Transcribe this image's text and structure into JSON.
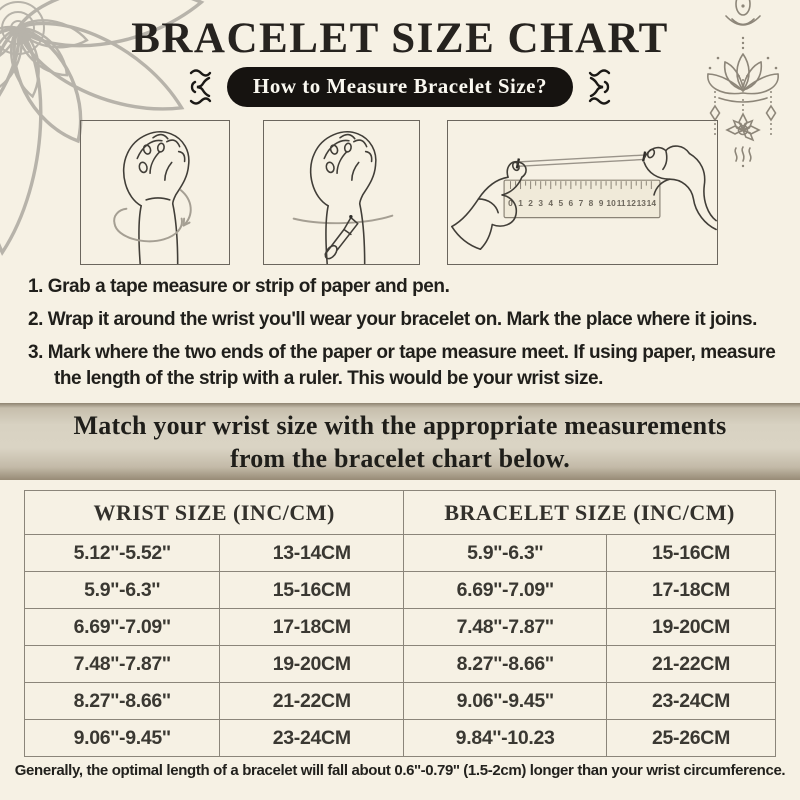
{
  "page": {
    "title": "BRACELET SIZE CHART",
    "pill_label": "How to Measure Bracelet Size?"
  },
  "steps": [
    "1. Grab a tape measure or strip of paper and pen.",
    "2. Wrap it around the wrist you'll wear your bracelet on. Mark the place where it joins.",
    "3. Mark where the two ends of the paper or tape measure meet. If using paper, measure the length of the strip with a ruler. This would be your wrist size."
  ],
  "banner": {
    "line1": "Match your wrist size with the appropriate measurements",
    "line2": "from the bracelet chart below."
  },
  "size_table": {
    "headers": [
      "WRIST SIZE (INC/CM)",
      "BRACELET SIZE  (INC/CM)"
    ],
    "rows": [
      [
        "5.12''-5.52''",
        "13-14CM",
        "5.9''-6.3''",
        "15-16CM"
      ],
      [
        "5.9''-6.3''",
        "15-16CM",
        "6.69''-7.09''",
        "17-18CM"
      ],
      [
        "6.69''-7.09''",
        "17-18CM",
        "7.48''-7.87''",
        "19-20CM"
      ],
      [
        "7.48''-7.87''",
        "19-20CM",
        "8.27''-8.66''",
        "21-22CM"
      ],
      [
        "8.27''-8.66''",
        "21-22CM",
        "9.06''-9.45''",
        "23-24CM"
      ],
      [
        "9.06''-9.45''",
        "23-24CM",
        "9.84''-10.23",
        "25-26CM"
      ]
    ]
  },
  "ruler": {
    "numbers": [
      "0",
      "1",
      "2",
      "3",
      "4",
      "5",
      "6",
      "7",
      "8",
      "9",
      "10",
      "11",
      "12",
      "13",
      "14"
    ]
  },
  "footer": {
    "note": "Generally, the optimal length of a bracelet will fall about 0.6''-0.79'' (1.5-2cm) longer than your wrist circumference."
  },
  "icons": {
    "mandala": "mandala-flower-decoration",
    "lotus": "lotus-hanging-ornament",
    "squiggle": "curly-flourish"
  },
  "colors": {
    "background": "#f6f1e4",
    "pill_bg": "#161310",
    "pill_text": "#faf8f0",
    "banner_mid": "#d8d2c2",
    "banner_edge": "#8f8471",
    "table_border": "#8b857a",
    "text_dark": "#26231f",
    "line_art": "#413e38",
    "line_art_soft": "#a59f93",
    "ornament": "#8d8679",
    "mandala": "#b7b3aa"
  }
}
